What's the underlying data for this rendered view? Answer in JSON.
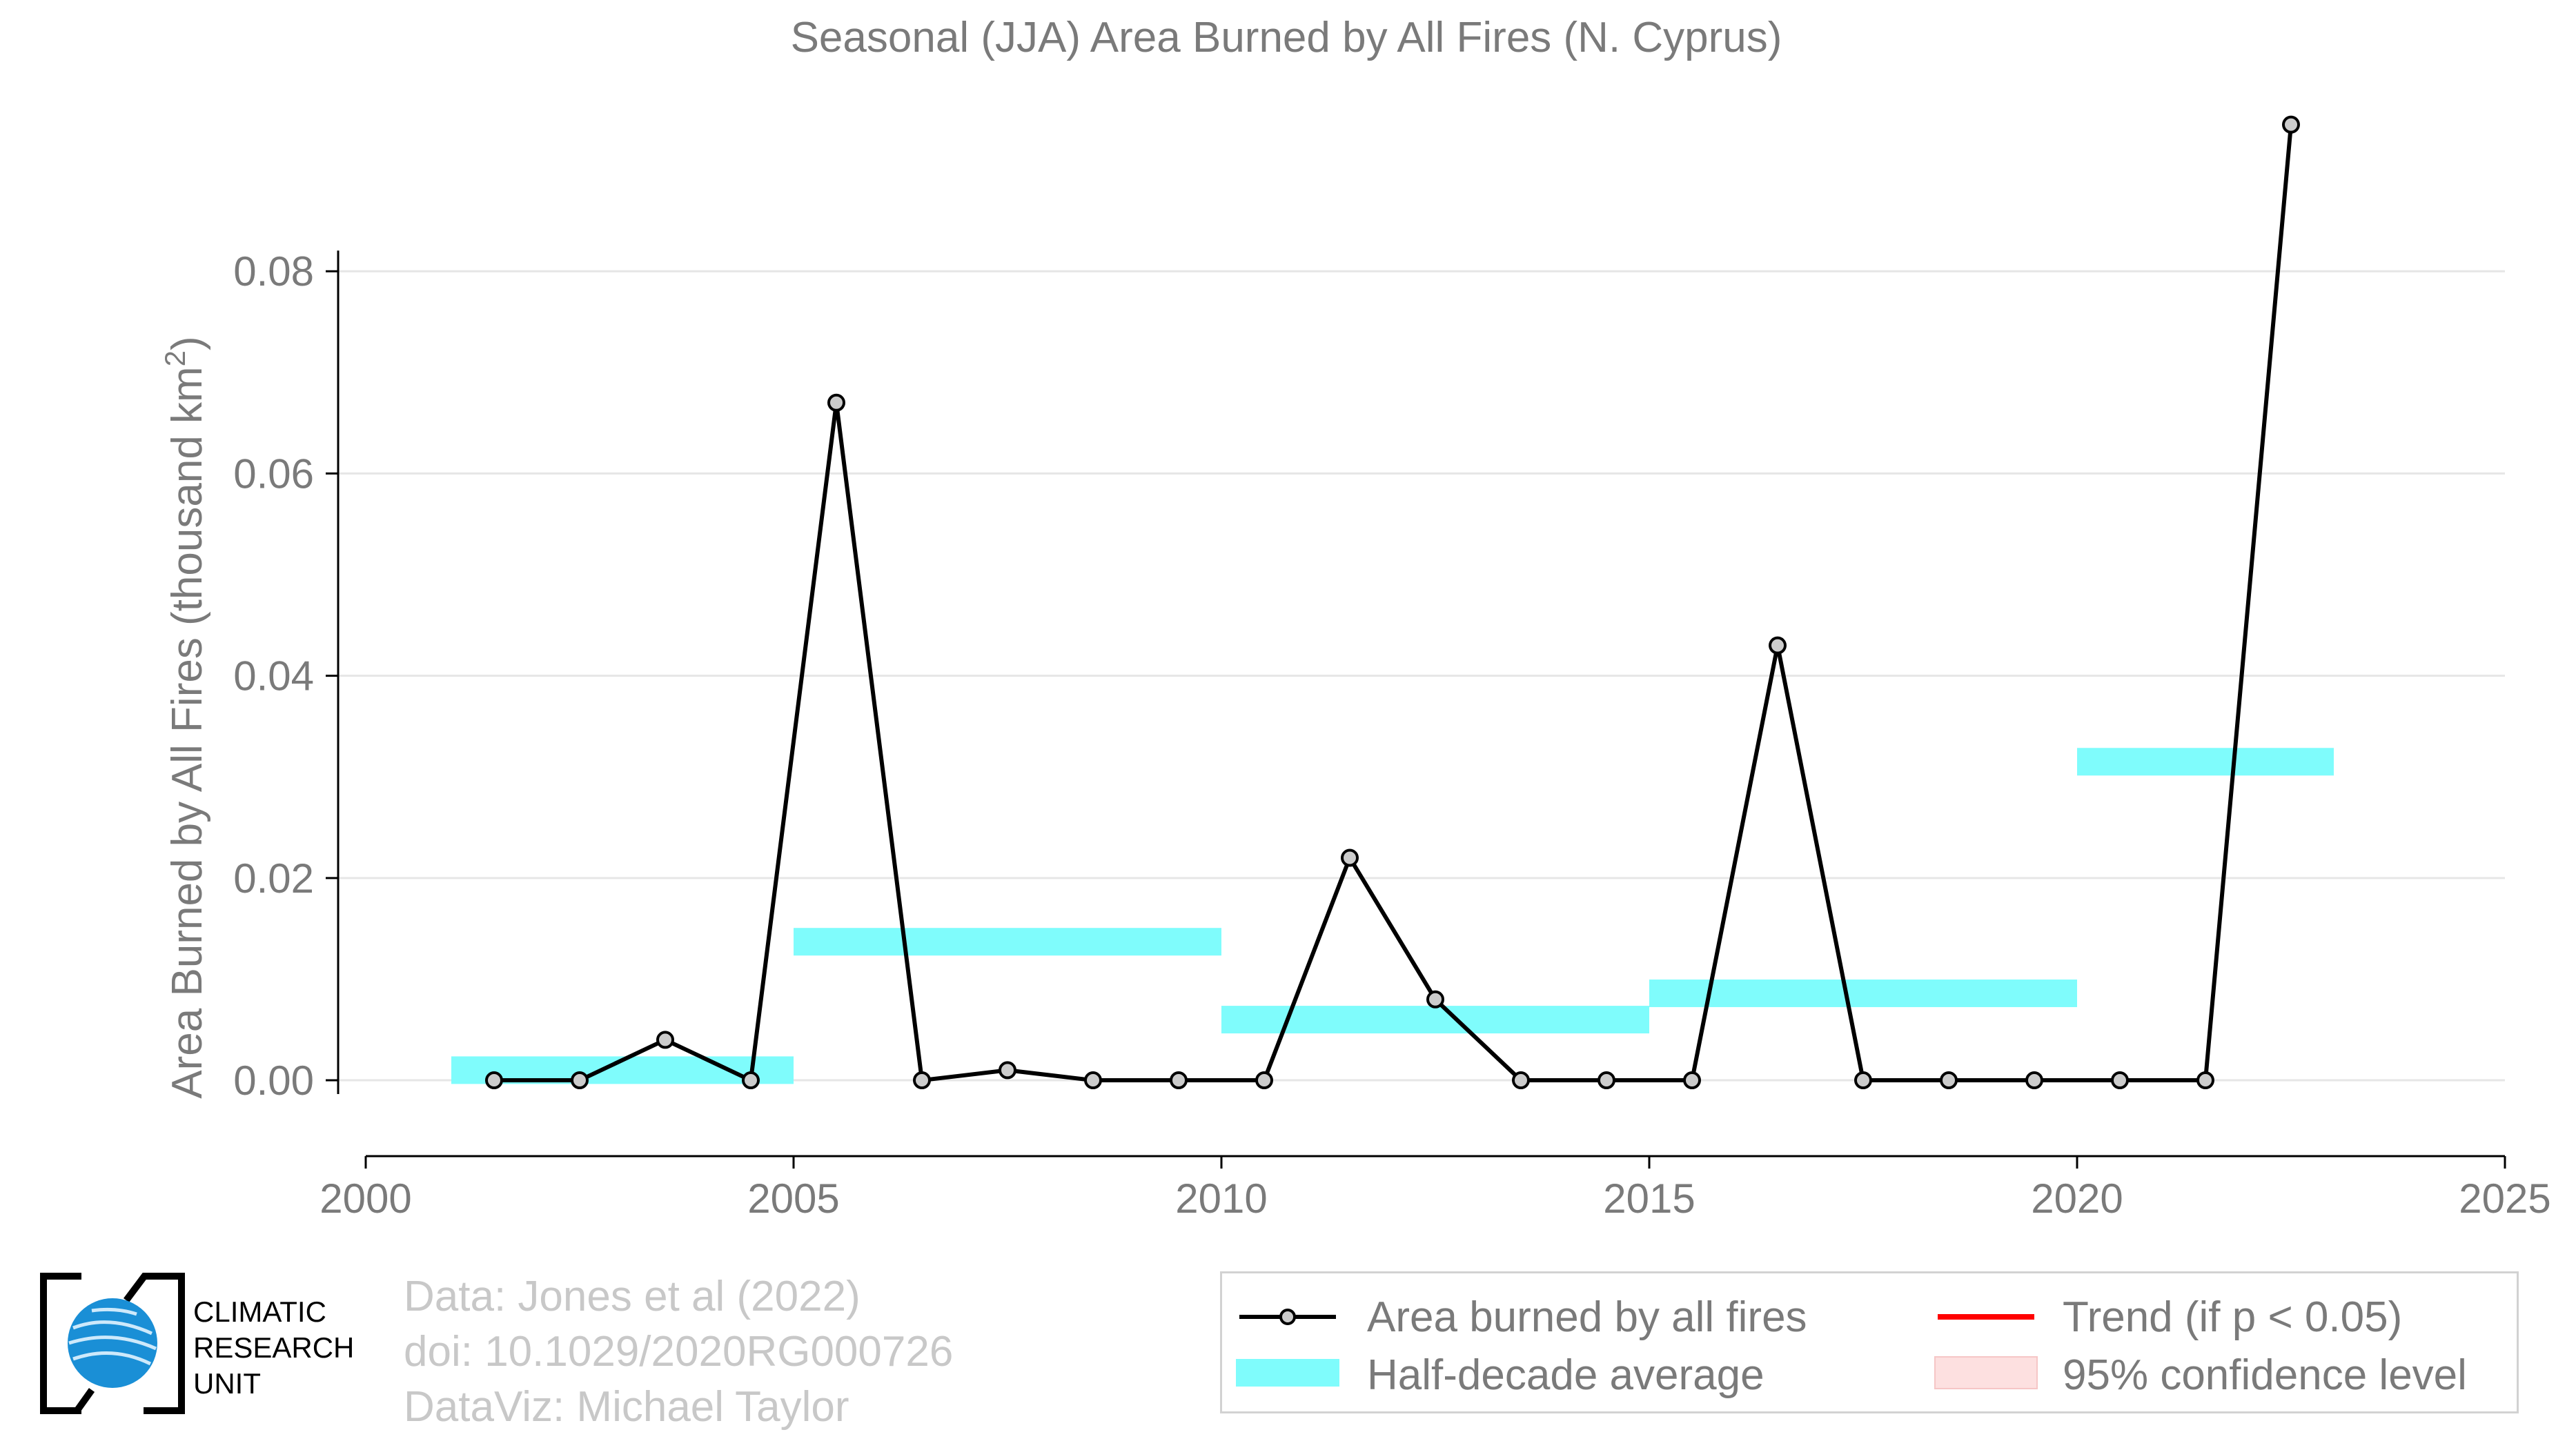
{
  "chart_data": {
    "type": "line",
    "title": "Seasonal (JJA) Area Burned by All Fires (N. Cyprus)",
    "ylabel_main": "Area Burned by All Fires (thousand km",
    "ylabel_sup": "2",
    "ylabel_close": ")",
    "xlim": [
      2000,
      2025
    ],
    "ylim": [
      -0.0075,
      0.1
    ],
    "xticks": [
      2000,
      2005,
      2010,
      2015,
      2020,
      2025
    ],
    "xtick_labels": [
      "2000",
      "2005",
      "2010",
      "2015",
      "2020",
      "2025"
    ],
    "yticks": [
      0,
      0.02,
      0.04,
      0.06,
      0.08
    ],
    "ytick_labels": [
      "0.00",
      "0.02",
      "0.04",
      "0.06",
      "0.08"
    ],
    "grid": "horizontal",
    "series": [
      {
        "name": "Area burned by all fires",
        "color": "#000000",
        "x": [
          2001.5,
          2002.5,
          2003.5,
          2004.5,
          2005.5,
          2006.5,
          2007.5,
          2008.5,
          2009.5,
          2010.5,
          2011.5,
          2012.5,
          2013.5,
          2014.5,
          2015.5,
          2016.5,
          2017.5,
          2018.5,
          2019.5,
          2020.5,
          2021.5,
          2022.5
        ],
        "y": [
          0.0,
          0.0,
          0.004,
          0.0,
          0.067,
          0.0,
          0.001,
          0.0,
          0.0,
          0.0,
          0.022,
          0.008,
          0.0,
          0.0,
          0.0,
          0.043,
          0.0,
          0.0,
          0.0,
          0.0,
          0.0,
          0.0945
        ]
      }
    ],
    "half_decade_averages": [
      {
        "x0": 2001,
        "x1": 2005,
        "y": 0.001
      },
      {
        "x0": 2005,
        "x1": 2010,
        "y": 0.0137
      },
      {
        "x0": 2010,
        "x1": 2015,
        "y": 0.006
      },
      {
        "x0": 2015,
        "x1": 2020,
        "y": 0.0086
      },
      {
        "x0": 2020,
        "x1": 2023,
        "y": 0.0315
      }
    ],
    "half_decade_color": "#7ffcfc",
    "legend": {
      "placement": "bottom-right",
      "entries": [
        {
          "label": "Area burned by all fires",
          "color": "#000000"
        },
        {
          "label": "Trend (if p < 0.05)",
          "color": "#ff0000"
        },
        {
          "label": "Half-decade average",
          "color": "#7ffcfc"
        },
        {
          "label": "95% confidence level",
          "color": "#fde0e0"
        }
      ]
    }
  },
  "credits": {
    "line1": "Data: Jones et al (2022)",
    "line2": "doi: 10.1029/2020RG000726",
    "line3": "DataViz: Michael Taylor"
  },
  "logo": {
    "line1": "CLIMATIC",
    "line2": "RESEARCH",
    "line3": "UNIT",
    "globe_color": "#1a8fd6"
  }
}
